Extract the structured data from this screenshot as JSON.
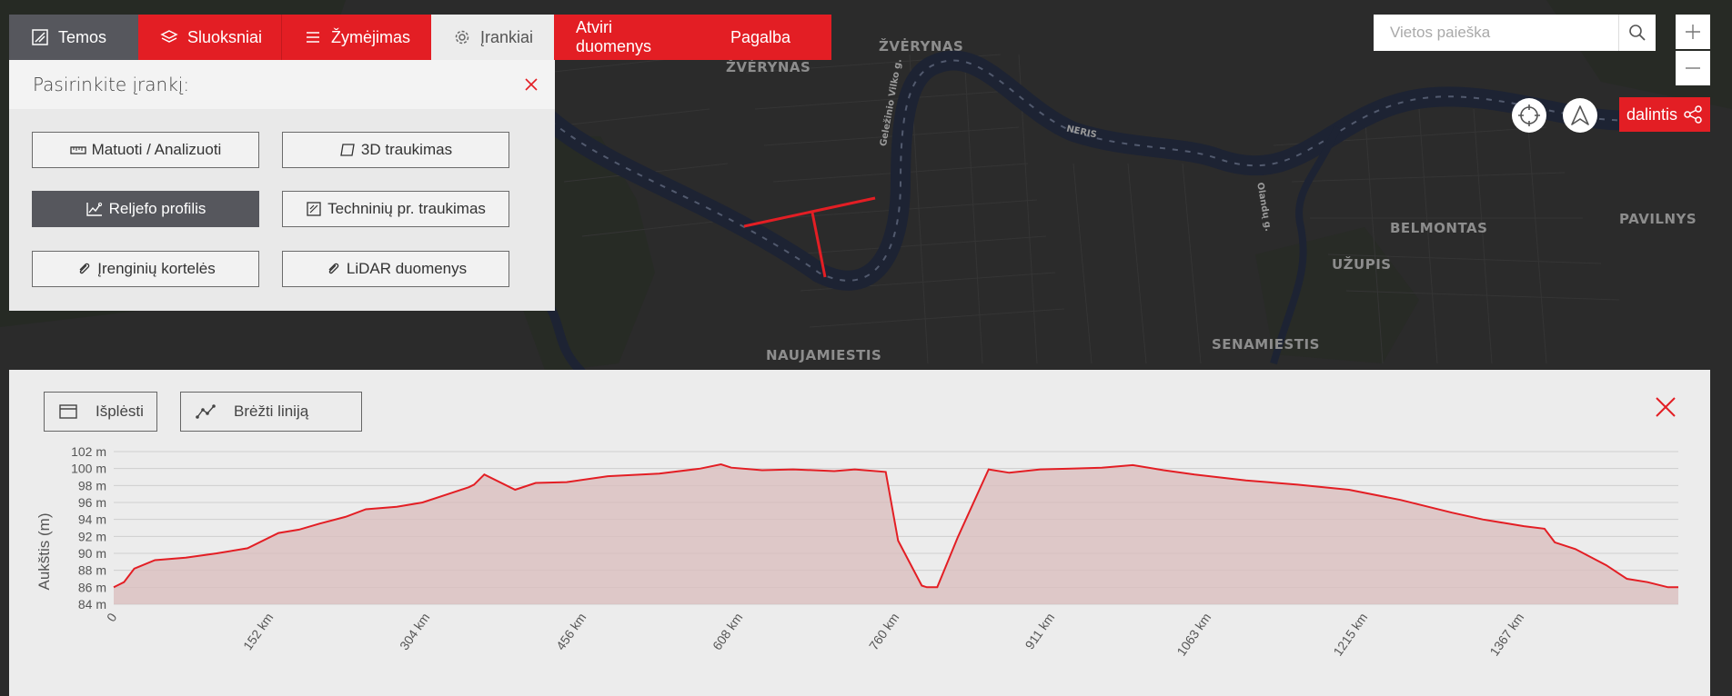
{
  "nav": {
    "tabs": [
      {
        "label": "Temos",
        "icon": "themes-icon"
      },
      {
        "label": "Sluoksniai",
        "icon": "layers-icon"
      },
      {
        "label": "Žymėjimas",
        "icon": "list-icon"
      },
      {
        "label": "Įrankiai",
        "icon": "gear-icon"
      },
      {
        "label": "Atviri duomenys"
      },
      {
        "label": "Pagalba"
      }
    ],
    "active_tab": "Įrankiai"
  },
  "tools": {
    "title": "Pasirinkite įrankį:",
    "buttons": [
      {
        "label": "Matuoti / Analizuoti",
        "icon": "ruler-icon"
      },
      {
        "label": "3D traukimas",
        "icon": "3d-icon"
      },
      {
        "label": "Reljefo profilis",
        "icon": "profile-icon",
        "selected": true
      },
      {
        "label": "Techninių pr. traukimas",
        "icon": "drawing-icon"
      },
      {
        "label": "Įrenginių kortelės",
        "icon": "paperclip-icon"
      },
      {
        "label": "LiDAR duomenys",
        "icon": "paperclip-icon"
      }
    ]
  },
  "search": {
    "placeholder": "Vietos paieška",
    "value": ""
  },
  "share": {
    "label": "dalintis"
  },
  "map": {
    "labels": [
      {
        "text": "ŽVĖRYNAS"
      },
      {
        "text": "ŽVĖRYNAS"
      },
      {
        "text": "NAUJAMIESTIS"
      },
      {
        "text": "SENAMIESTIS"
      },
      {
        "text": "UŽUPIS"
      },
      {
        "text": "BELMONTAS"
      },
      {
        "text": "PAVILNYS"
      },
      {
        "text": "NERIS"
      },
      {
        "text": "Geležinio Vilko g."
      },
      {
        "text": "Olandų g."
      }
    ]
  },
  "profile": {
    "expand_label": "Išplėsti",
    "draw_label": "Brėžti liniją"
  },
  "colors": {
    "accent": "#e31e24",
    "dark_button": "#56575d",
    "panel": "#ececec"
  },
  "chart_data": {
    "type": "area",
    "ylabel": "Aukštis (m)",
    "ylim": [
      84,
      102
    ],
    "yticks": [
      84,
      86,
      88,
      90,
      92,
      94,
      96,
      98,
      100,
      102
    ],
    "ytick_labels": [
      "84 m",
      "86 m",
      "88 m",
      "90 m",
      "92 m",
      "94 m",
      "96 m",
      "98 m",
      "100 m",
      "102 m"
    ],
    "xticks": [
      0,
      152,
      304,
      456,
      608,
      760,
      911,
      1063,
      1215,
      1367
    ],
    "xtick_labels": [
      "0",
      "152 km",
      "304 km",
      "456 km",
      "608 km",
      "760 km",
      "911 km",
      "1063 km",
      "1215 km",
      "1367 km"
    ],
    "xlim": [
      0,
      1520
    ],
    "x": [
      0,
      10,
      20,
      40,
      70,
      100,
      130,
      160,
      180,
      200,
      225,
      245,
      275,
      300,
      325,
      345,
      350,
      360,
      390,
      410,
      440,
      480,
      530,
      570,
      590,
      600,
      630,
      660,
      680,
      700,
      720,
      750,
      762,
      785,
      790,
      800,
      820,
      850,
      870,
      900,
      930,
      960,
      990,
      1020,
      1050,
      1100,
      1150,
      1200,
      1250,
      1300,
      1330,
      1350,
      1370,
      1390,
      1400,
      1420,
      1450,
      1470,
      1490,
      1510,
      1520
    ],
    "y": [
      86.0,
      86.6,
      88.2,
      89.2,
      89.5,
      90.0,
      90.6,
      92.4,
      92.8,
      93.5,
      94.3,
      95.2,
      95.5,
      96.0,
      97.0,
      97.8,
      98.1,
      99.3,
      97.5,
      98.3,
      98.4,
      99.1,
      99.4,
      100.0,
      100.5,
      100.1,
      99.8,
      99.9,
      99.8,
      99.7,
      99.9,
      99.6,
      91.5,
      86.2,
      86.0,
      86.0,
      91.9,
      99.9,
      99.5,
      99.9,
      100.0,
      100.1,
      100.4,
      99.8,
      99.3,
      98.6,
      98.1,
      97.5,
      96.3,
      94.8,
      94.0,
      93.6,
      93.2,
      92.9,
      91.3,
      90.5,
      88.6,
      87.0,
      86.6,
      86.0,
      86.0
    ],
    "grid": true,
    "legend": "none"
  }
}
